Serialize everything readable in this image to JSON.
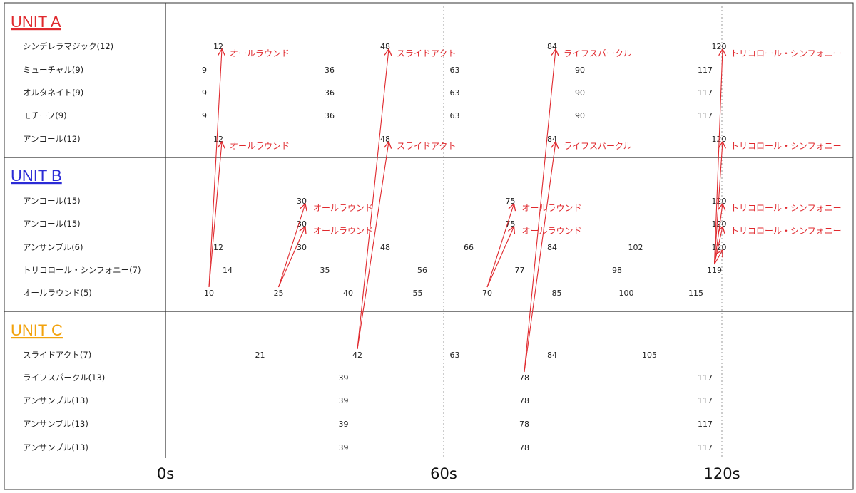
{
  "colors": {
    "unit_a": "#e0292e",
    "unit_b": "#2b2bd6",
    "unit_c": "#f2a20c",
    "arrow": "#e0292e",
    "grid": "#999999",
    "border": "#333333"
  },
  "axis": {
    "unit": "seconds",
    "ticks": [
      {
        "t": 0,
        "label": "0s",
        "line": "solid"
      },
      {
        "t": 60,
        "label": "60s",
        "line": "dotted"
      },
      {
        "t": 120,
        "label": "120s",
        "line": "dotted"
      }
    ]
  },
  "units": [
    {
      "title": "UNIT A",
      "color_key": "unit_a",
      "rows": [
        {
          "label": "シンデレラマジック(12)",
          "times": [
            12,
            48,
            84,
            120
          ]
        },
        {
          "label": "ミューチャル(9)",
          "times": [
            9,
            36,
            63,
            90,
            117
          ]
        },
        {
          "label": "オルタネイト(9)",
          "times": [
            9,
            36,
            63,
            90,
            117
          ]
        },
        {
          "label": "モチーフ(9)",
          "times": [
            9,
            36,
            63,
            90,
            117
          ]
        },
        {
          "label": "アンコール(12)",
          "times": [
            12,
            48,
            84,
            120
          ]
        }
      ]
    },
    {
      "title": "UNIT B",
      "color_key": "unit_b",
      "rows": [
        {
          "label": "アンコール(15)",
          "times": [
            30,
            75,
            120
          ]
        },
        {
          "label": "アンコール(15)",
          "times": [
            30,
            75,
            120
          ]
        },
        {
          "label": "アンサンブル(6)",
          "times": [
            12,
            30,
            48,
            66,
            84,
            102,
            120
          ]
        },
        {
          "label": "トリコロール・シンフォニー(7)",
          "times": [
            14,
            35,
            56,
            77,
            98,
            119
          ]
        },
        {
          "label": "オールラウンド(5)",
          "times": [
            10,
            25,
            40,
            55,
            70,
            85,
            100,
            115
          ]
        }
      ]
    },
    {
      "title": "UNIT C",
      "color_key": "unit_c",
      "rows": [
        {
          "label": "スライドアクト(7)",
          "times": [
            21,
            42,
            63,
            84,
            105
          ]
        },
        {
          "label": "ライフスパークル(13)",
          "times": [
            39,
            78,
            117
          ]
        },
        {
          "label": "アンサンブル(13)",
          "times": [
            39,
            78,
            117
          ]
        },
        {
          "label": "アンサンブル(13)",
          "times": [
            39,
            78,
            117
          ]
        },
        {
          "label": "アンサンブル(13)",
          "times": [
            39,
            78,
            117
          ]
        }
      ]
    }
  ],
  "arrows": [
    {
      "from": [
        1,
        4,
        0
      ],
      "to": [
        0,
        0,
        0
      ]
    },
    {
      "from": [
        1,
        4,
        0
      ],
      "to": [
        0,
        4,
        0
      ]
    },
    {
      "from": [
        1,
        4,
        1
      ],
      "to": [
        1,
        0,
        0
      ]
    },
    {
      "from": [
        1,
        4,
        1
      ],
      "to": [
        1,
        1,
        0
      ]
    },
    {
      "from": [
        1,
        4,
        4
      ],
      "to": [
        1,
        0,
        1
      ]
    },
    {
      "from": [
        1,
        4,
        4
      ],
      "to": [
        1,
        1,
        1
      ]
    },
    {
      "from": [
        2,
        0,
        1
      ],
      "to": [
        0,
        0,
        1
      ]
    },
    {
      "from": [
        2,
        0,
        1
      ],
      "to": [
        0,
        4,
        1
      ]
    },
    {
      "from": [
        2,
        1,
        1
      ],
      "to": [
        0,
        0,
        2
      ]
    },
    {
      "from": [
        2,
        1,
        1
      ],
      "to": [
        0,
        4,
        2
      ]
    },
    {
      "from": [
        1,
        3,
        5
      ],
      "to": [
        0,
        0,
        3
      ]
    },
    {
      "from": [
        1,
        3,
        5
      ],
      "to": [
        0,
        4,
        3
      ]
    },
    {
      "from": [
        1,
        3,
        5
      ],
      "to": [
        1,
        0,
        2
      ]
    },
    {
      "from": [
        1,
        3,
        5
      ],
      "to": [
        1,
        1,
        2
      ]
    },
    {
      "from": [
        1,
        3,
        5
      ],
      "to": [
        1,
        2,
        6
      ]
    }
  ],
  "annotations": [
    {
      "at": [
        0,
        0,
        0
      ],
      "text": "オールラウンド"
    },
    {
      "at": [
        0,
        0,
        1
      ],
      "text": "スライドアクト"
    },
    {
      "at": [
        0,
        0,
        2
      ],
      "text": "ライフスパークル"
    },
    {
      "at": [
        0,
        0,
        3
      ],
      "text": "トリコロール・シンフォニー"
    },
    {
      "at": [
        0,
        4,
        0
      ],
      "text": "オールラウンド"
    },
    {
      "at": [
        0,
        4,
        1
      ],
      "text": "スライドアクト"
    },
    {
      "at": [
        0,
        4,
        2
      ],
      "text": "ライフスパークル"
    },
    {
      "at": [
        0,
        4,
        3
      ],
      "text": "トリコロール・シンフォニー"
    },
    {
      "at": [
        1,
        0,
        0
      ],
      "text": "オールラウンド"
    },
    {
      "at": [
        1,
        0,
        1
      ],
      "text": "オールラウンド"
    },
    {
      "at": [
        1,
        0,
        2
      ],
      "text": "トリコロール・シンフォニー"
    },
    {
      "at": [
        1,
        1,
        0
      ],
      "text": "オールラウンド"
    },
    {
      "at": [
        1,
        1,
        1
      ],
      "text": "オールラウンド"
    },
    {
      "at": [
        1,
        1,
        2
      ],
      "text": "トリコロール・シンフォニー"
    }
  ]
}
